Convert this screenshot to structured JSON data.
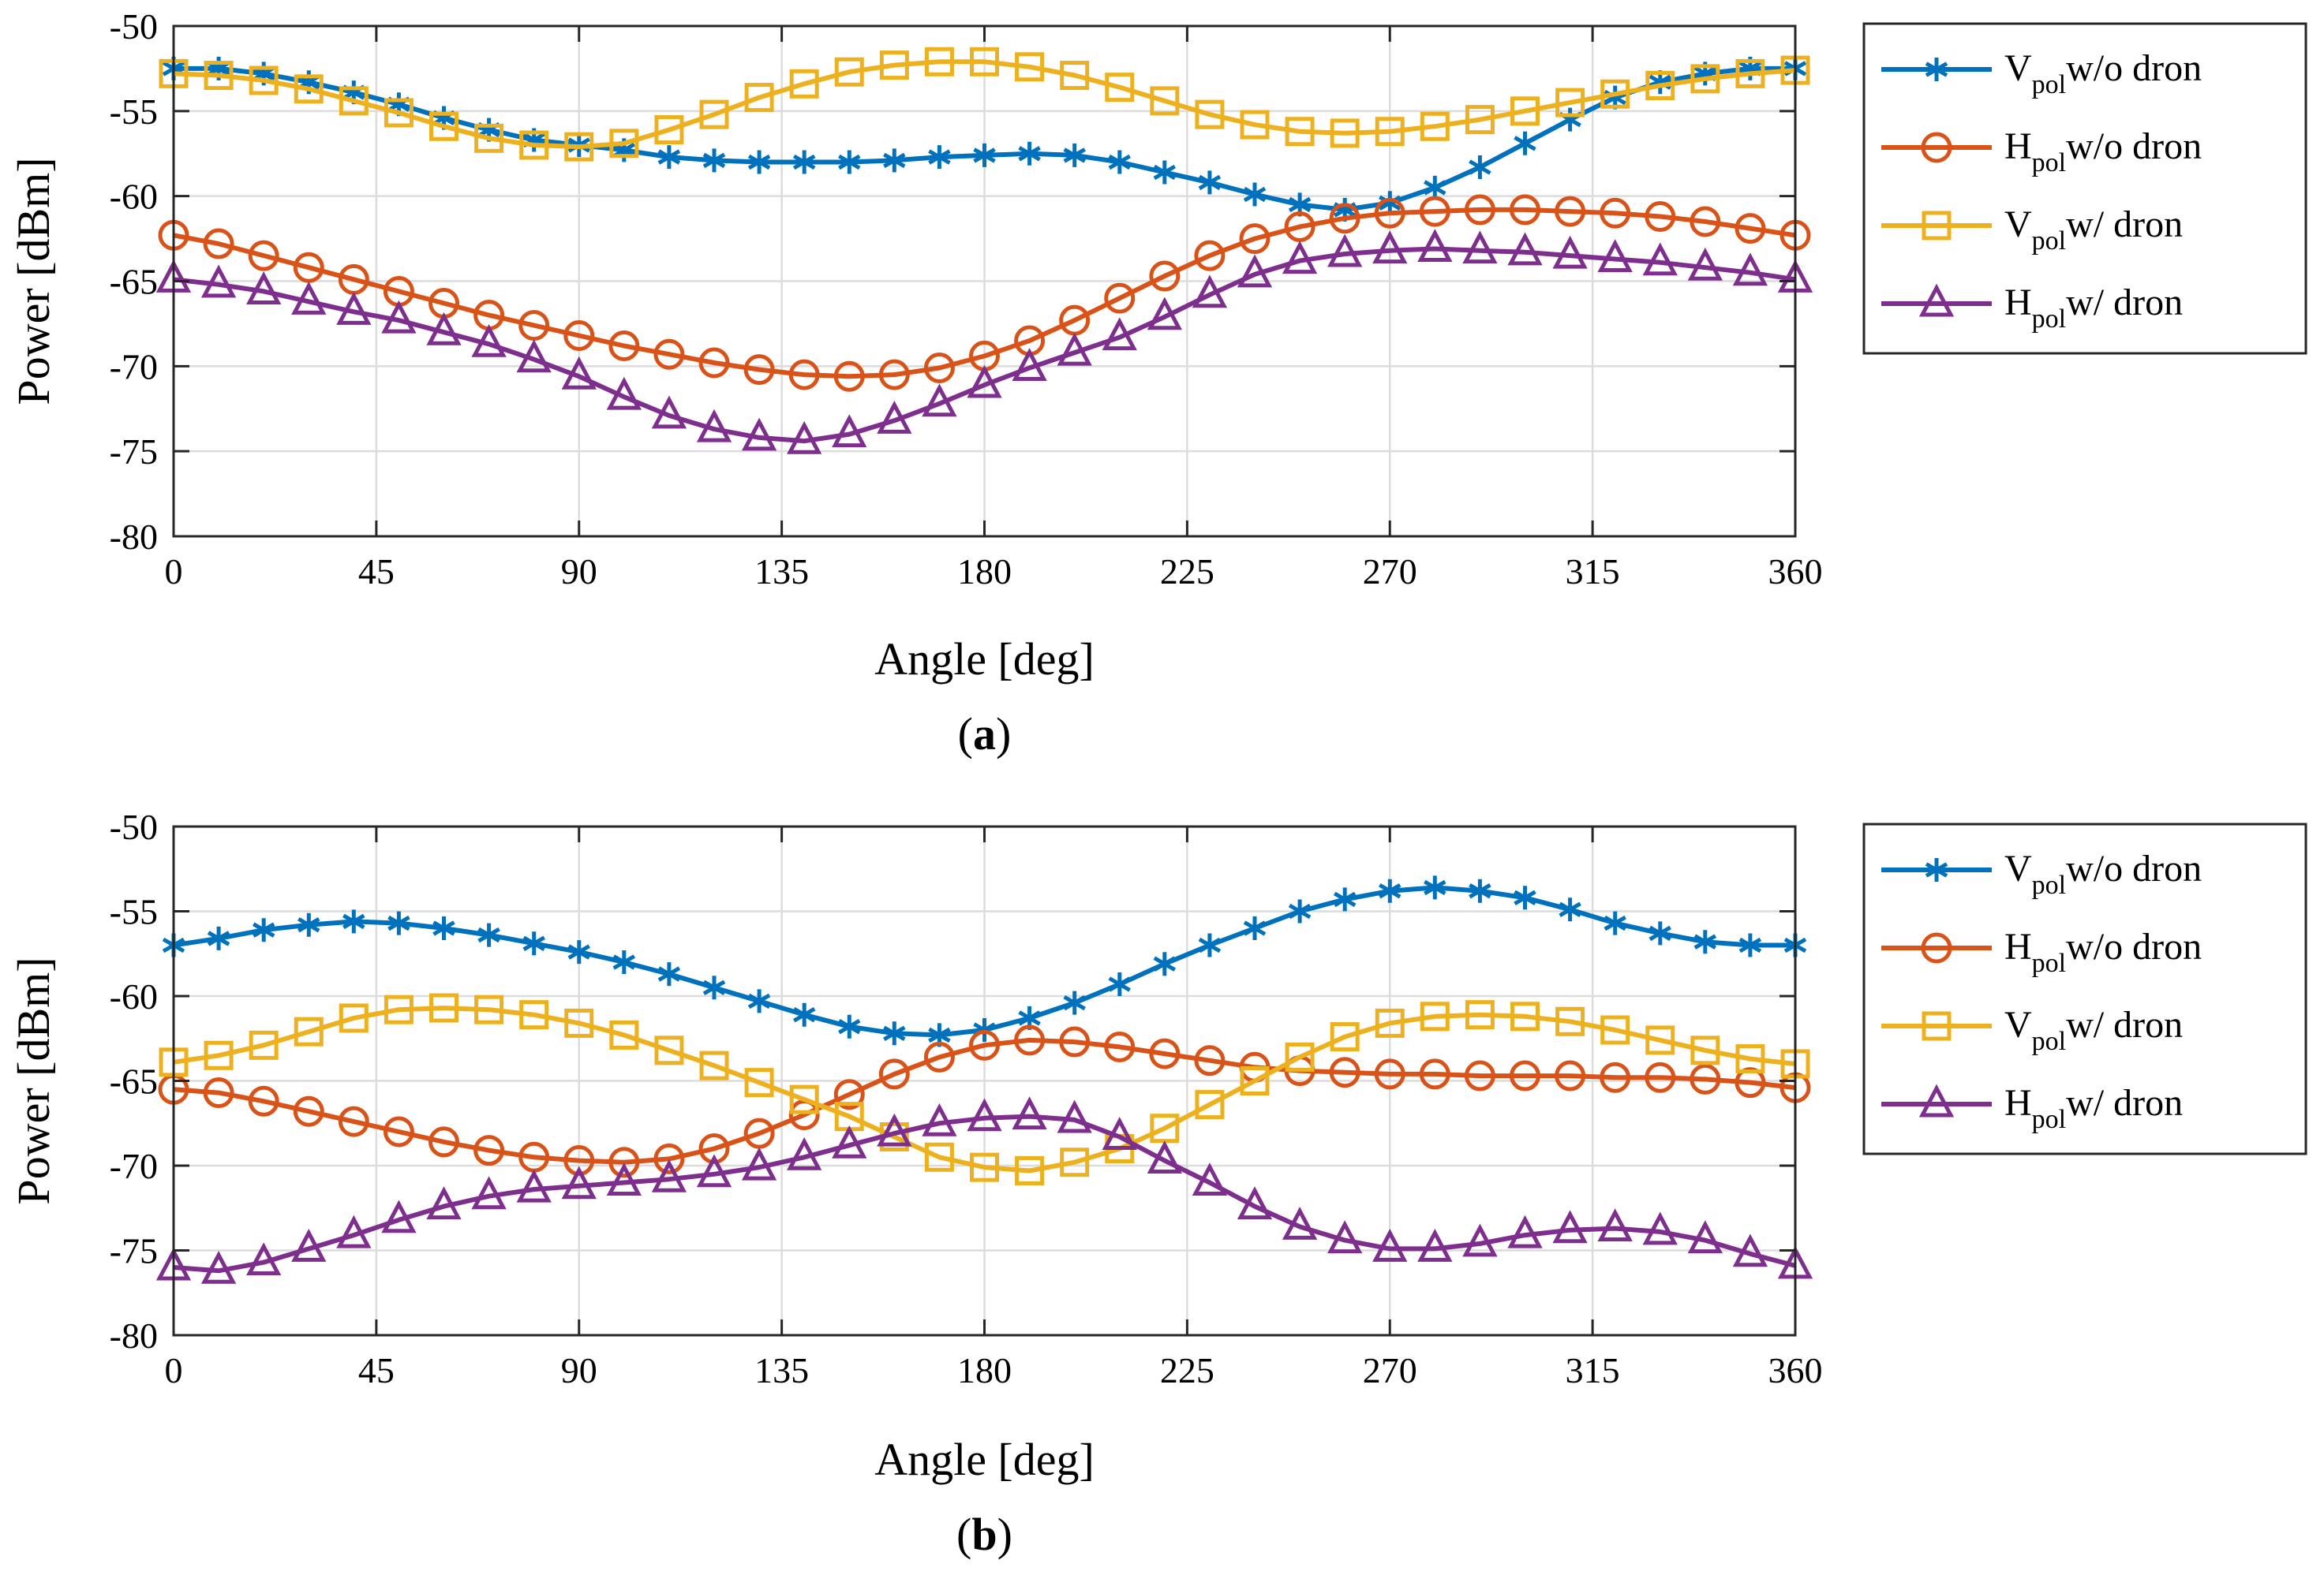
{
  "chart_data": [
    {
      "type": "line",
      "panel_label": "a",
      "xlabel": "Angle [deg]",
      "ylabel": "Power [dBm]",
      "xlim": [
        0,
        360
      ],
      "ylim": [
        -80,
        -50
      ],
      "xticks": [
        0,
        45,
        90,
        135,
        180,
        225,
        270,
        315,
        360
      ],
      "yticks": [
        -50,
        -55,
        -60,
        -65,
        -70,
        -75,
        -80
      ],
      "grid": true,
      "legend_position": "outside-right",
      "x": [
        0,
        10,
        20,
        30,
        40,
        50,
        60,
        70,
        80,
        90,
        100,
        110,
        120,
        130,
        140,
        150,
        160,
        170,
        180,
        190,
        200,
        210,
        220,
        230,
        240,
        250,
        260,
        270,
        280,
        290,
        300,
        310,
        320,
        330,
        340,
        350,
        360
      ],
      "series": [
        {
          "name_main": "V",
          "name_sub": "pol",
          "name_rest": "w/o dron",
          "color": "#0072BD",
          "marker": "asterisk",
          "values": [
            -52.5,
            -52.5,
            -52.8,
            -53.3,
            -53.9,
            -54.6,
            -55.4,
            -56.1,
            -56.7,
            -57.0,
            -57.3,
            -57.7,
            -57.9,
            -58.0,
            -58.0,
            -58.0,
            -57.9,
            -57.7,
            -57.6,
            -57.5,
            -57.6,
            -58.0,
            -58.6,
            -59.2,
            -59.9,
            -60.5,
            -60.8,
            -60.4,
            -59.5,
            -58.3,
            -56.9,
            -55.5,
            -54.2,
            -53.3,
            -52.8,
            -52.5,
            -52.5
          ]
        },
        {
          "name_main": "H",
          "name_sub": "pol",
          "name_rest": "w/o dron",
          "color": "#D95319",
          "marker": "circle",
          "values": [
            -62.3,
            -62.8,
            -63.5,
            -64.2,
            -64.9,
            -65.6,
            -66.3,
            -67.0,
            -67.6,
            -68.2,
            -68.8,
            -69.3,
            -69.8,
            -70.2,
            -70.5,
            -70.6,
            -70.5,
            -70.1,
            -69.4,
            -68.5,
            -67.3,
            -66.0,
            -64.7,
            -63.5,
            -62.5,
            -61.8,
            -61.3,
            -61.0,
            -60.9,
            -60.8,
            -60.8,
            -60.9,
            -61.0,
            -61.2,
            -61.5,
            -61.9,
            -62.3
          ]
        },
        {
          "name_main": "V",
          "name_sub": "pol",
          "name_rest": "w/ dron",
          "color": "#EDB120",
          "marker": "square",
          "values": [
            -52.8,
            -52.9,
            -53.2,
            -53.7,
            -54.4,
            -55.1,
            -55.9,
            -56.6,
            -57.0,
            -57.1,
            -56.9,
            -56.1,
            -55.2,
            -54.2,
            -53.4,
            -52.7,
            -52.3,
            -52.1,
            -52.1,
            -52.4,
            -52.9,
            -53.6,
            -54.4,
            -55.2,
            -55.8,
            -56.2,
            -56.3,
            -56.2,
            -55.9,
            -55.5,
            -55.0,
            -54.5,
            -54.0,
            -53.5,
            -53.1,
            -52.8,
            -52.6
          ]
        },
        {
          "name_main": "H",
          "name_sub": "pol",
          "name_rest": "w/ dron",
          "color": "#7E2F8E",
          "marker": "triangle",
          "values": [
            -64.9,
            -65.2,
            -65.6,
            -66.2,
            -66.8,
            -67.3,
            -68.0,
            -68.7,
            -69.6,
            -70.6,
            -71.8,
            -72.9,
            -73.7,
            -74.2,
            -74.4,
            -74.0,
            -73.2,
            -72.2,
            -71.1,
            -70.1,
            -69.2,
            -68.3,
            -67.1,
            -65.8,
            -64.6,
            -63.8,
            -63.4,
            -63.2,
            -63.1,
            -63.2,
            -63.3,
            -63.5,
            -63.7,
            -63.9,
            -64.2,
            -64.5,
            -64.9
          ]
        }
      ]
    },
    {
      "type": "line",
      "panel_label": "b",
      "xlabel": "Angle [deg]",
      "ylabel": "Power [dBm]",
      "xlim": [
        0,
        360
      ],
      "ylim": [
        -80,
        -50
      ],
      "xticks": [
        0,
        45,
        90,
        135,
        180,
        225,
        270,
        315,
        360
      ],
      "yticks": [
        -50,
        -55,
        -60,
        -65,
        -70,
        -75,
        -80
      ],
      "grid": true,
      "legend_position": "outside-right",
      "x": [
        0,
        10,
        20,
        30,
        40,
        50,
        60,
        70,
        80,
        90,
        100,
        110,
        120,
        130,
        140,
        150,
        160,
        170,
        180,
        190,
        200,
        210,
        220,
        230,
        240,
        250,
        260,
        270,
        280,
        290,
        300,
        310,
        320,
        330,
        340,
        350,
        360
      ],
      "series": [
        {
          "name_main": "V",
          "name_sub": "pol",
          "name_rest": "w/o dron",
          "color": "#0072BD",
          "marker": "asterisk",
          "values": [
            -57.0,
            -56.6,
            -56.1,
            -55.8,
            -55.6,
            -55.7,
            -56.0,
            -56.4,
            -56.9,
            -57.4,
            -58.0,
            -58.7,
            -59.5,
            -60.3,
            -61.1,
            -61.8,
            -62.2,
            -62.3,
            -62.0,
            -61.3,
            -60.4,
            -59.3,
            -58.1,
            -57.0,
            -56.0,
            -55.0,
            -54.3,
            -53.8,
            -53.6,
            -53.8,
            -54.2,
            -54.9,
            -55.7,
            -56.3,
            -56.8,
            -57.0,
            -57.0
          ]
        },
        {
          "name_main": "H",
          "name_sub": "pol",
          "name_rest": "w/o dron",
          "color": "#D95319",
          "marker": "circle",
          "values": [
            -65.5,
            -65.7,
            -66.2,
            -66.8,
            -67.4,
            -68.0,
            -68.6,
            -69.1,
            -69.5,
            -69.7,
            -69.8,
            -69.6,
            -69.0,
            -68.1,
            -67.0,
            -65.8,
            -64.6,
            -63.6,
            -62.9,
            -62.6,
            -62.7,
            -63.0,
            -63.4,
            -63.8,
            -64.2,
            -64.4,
            -64.5,
            -64.6,
            -64.6,
            -64.7,
            -64.7,
            -64.7,
            -64.8,
            -64.8,
            -64.9,
            -65.1,
            -65.4
          ]
        },
        {
          "name_main": "V",
          "name_sub": "pol",
          "name_rest": "w/ dron",
          "color": "#EDB120",
          "marker": "square",
          "values": [
            -63.9,
            -63.5,
            -62.9,
            -62.1,
            -61.3,
            -60.8,
            -60.7,
            -60.8,
            -61.1,
            -61.6,
            -62.3,
            -63.2,
            -64.1,
            -65.1,
            -66.1,
            -67.1,
            -68.3,
            -69.5,
            -70.1,
            -70.3,
            -69.8,
            -69.0,
            -67.8,
            -66.4,
            -65.0,
            -63.6,
            -62.4,
            -61.6,
            -61.2,
            -61.1,
            -61.2,
            -61.5,
            -62.0,
            -62.6,
            -63.2,
            -63.7,
            -64.0
          ]
        },
        {
          "name_main": "H",
          "name_sub": "pol",
          "name_rest": "w/ dron",
          "color": "#7E2F8E",
          "marker": "triangle",
          "values": [
            -76.0,
            -76.2,
            -75.7,
            -74.9,
            -74.1,
            -73.2,
            -72.4,
            -71.8,
            -71.4,
            -71.2,
            -71.0,
            -70.8,
            -70.5,
            -70.1,
            -69.5,
            -68.8,
            -68.1,
            -67.5,
            -67.2,
            -67.1,
            -67.3,
            -68.3,
            -69.7,
            -71.0,
            -72.4,
            -73.6,
            -74.4,
            -74.9,
            -74.9,
            -74.6,
            -74.1,
            -73.8,
            -73.7,
            -73.9,
            -74.4,
            -75.2,
            -75.9
          ]
        }
      ]
    }
  ]
}
